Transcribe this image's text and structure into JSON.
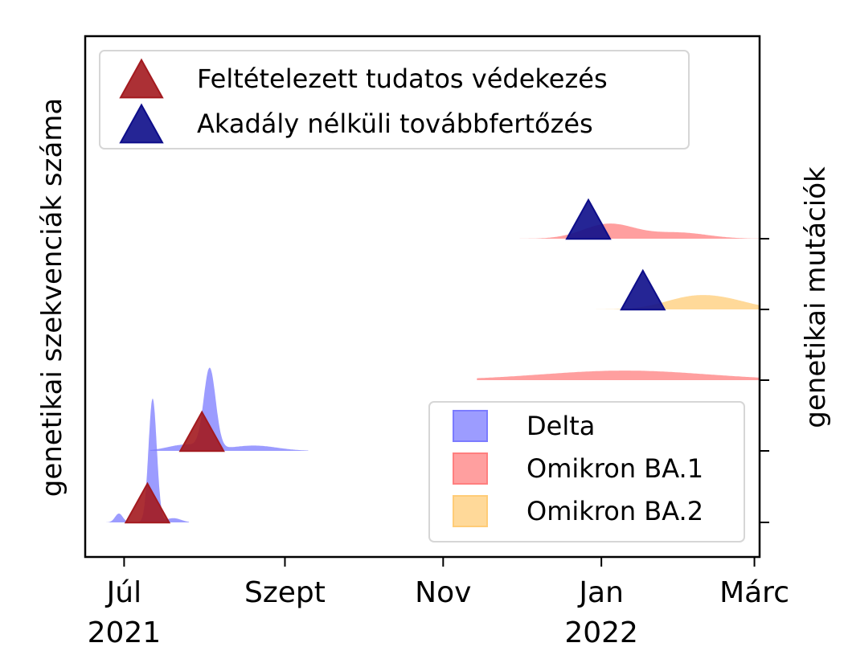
{
  "chart_data": {
    "type": "area",
    "title": "",
    "ylabel_left": "genetikai szekvenciák száma",
    "ylabel_right": "genetikai mutációk",
    "x_ticks": [
      {
        "value": "2021-07-01",
        "label": "Júl",
        "sublabel": "2021"
      },
      {
        "value": "2021-09-01",
        "label": "Szept",
        "sublabel": ""
      },
      {
        "value": "2021-11-01",
        "label": "Nov",
        "sublabel": ""
      },
      {
        "value": "2022-01-01",
        "label": "Jan",
        "sublabel": "2022"
      },
      {
        "value": "2022-03-01",
        "label": "Márc",
        "sublabel": ""
      }
    ],
    "xlim": [
      "2021-06-16",
      "2022-03-03"
    ],
    "rows": 5,
    "colors": {
      "Delta": "#7b7bff",
      "Omikron BA.1": "#ff7f7f",
      "Omikron BA.2": "#ffcc77",
      "marker_red": "#a31a1f",
      "marker_blue": "#0d0d8a"
    },
    "ridges": [
      {
        "row": 0,
        "variant": "Delta",
        "start": "2021-06-22",
        "end": "2021-07-26",
        "peaks": [
          {
            "date": "2021-07-12",
            "height": 3.5,
            "width": 1.6
          },
          {
            "date": "2021-06-29",
            "height": 0.25,
            "width": 1.5
          },
          {
            "date": "2021-07-20",
            "height": 0.12,
            "width": 3
          }
        ]
      },
      {
        "row": 1,
        "variant": "Delta",
        "start": "2021-07-11",
        "end": "2021-09-10",
        "peaks": [
          {
            "date": "2021-08-03",
            "height": 2.25,
            "width": 2.3
          },
          {
            "date": "2021-07-25",
            "height": 0.18,
            "width": 7
          },
          {
            "date": "2021-08-20",
            "height": 0.15,
            "width": 9
          }
        ]
      },
      {
        "row": 2,
        "variant": "Omikron BA.1",
        "start": "2021-11-14",
        "end": "2022-03-03",
        "peaks": [
          {
            "date": "2022-01-10",
            "height": 0.27,
            "width": 32
          }
        ]
      },
      {
        "row": 3,
        "variant": "Omikron BA.2",
        "start": "2021-12-25",
        "end": "2022-03-03",
        "peaks": [
          {
            "date": "2022-02-05",
            "height": 0.33,
            "width": 11
          },
          {
            "date": "2022-02-20",
            "height": 0.18,
            "width": 10
          }
        ]
      },
      {
        "row": 4,
        "variant": "Omikron BA.1",
        "start": "2021-11-20",
        "end": "2022-03-03",
        "peaks": [
          {
            "date": "2022-01-04",
            "height": 0.42,
            "width": 10
          },
          {
            "date": "2022-01-31",
            "height": 0.17,
            "width": 11
          }
        ]
      }
    ],
    "markers": [
      {
        "row": 0,
        "date": "2021-07-10",
        "type": "Feltételezett tudatos védekezés"
      },
      {
        "row": 1,
        "date": "2021-07-31",
        "type": "Feltételezett tudatos védekezés"
      },
      {
        "row": 3,
        "date": "2022-01-17",
        "type": "Akadály nélküli továbbfertőzés"
      },
      {
        "row": 4,
        "date": "2021-12-27",
        "type": "Akadály nélküli továbbfertőzés"
      }
    ],
    "legend_markers": {
      "position": "top-left",
      "entries": [
        {
          "label": "Feltételezett tudatos védekezés",
          "color": "#a31a1f"
        },
        {
          "label": "Akadály nélküli továbbfertőzés",
          "color": "#0d0d8a"
        }
      ]
    },
    "legend_variants": {
      "position": "bottom-right",
      "entries": [
        {
          "label": "Delta",
          "color": "#7b7bff"
        },
        {
          "label": "Omikron BA.1",
          "color": "#ff7f7f"
        },
        {
          "label": "Omikron BA.2",
          "color": "#ffcc77"
        }
      ]
    }
  }
}
